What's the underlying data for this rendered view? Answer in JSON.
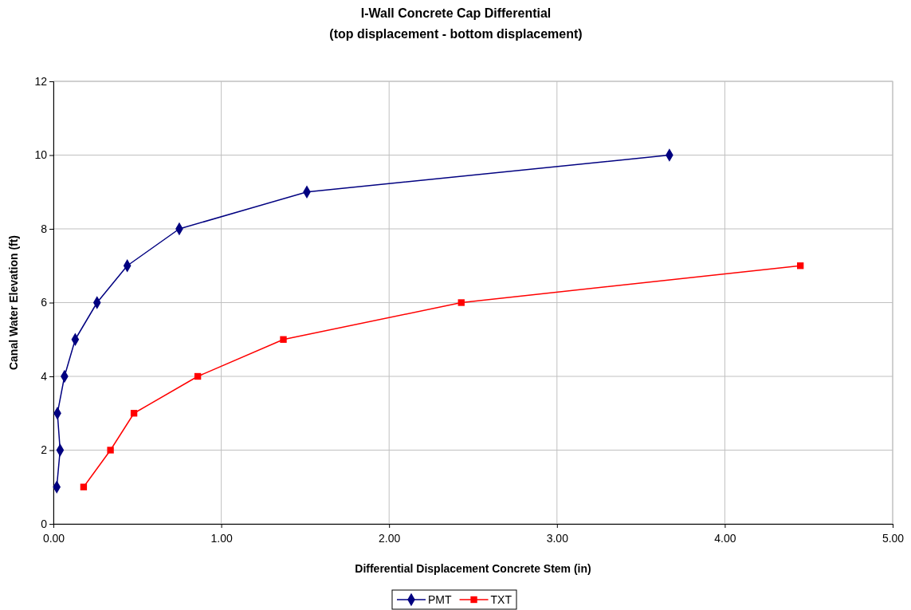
{
  "chart_data": {
    "type": "line",
    "title": "I-Wall Concrete Cap Differential",
    "subtitle": "(top displacement - bottom displacement)",
    "xlabel": "Differential Displacement Concrete Stem (in)",
    "ylabel": "Canal Water Elevation (ft)",
    "xlim": [
      0,
      5
    ],
    "xticks": [
      {
        "value": 0,
        "label": "0.00"
      },
      {
        "value": 1,
        "label": "1.00"
      },
      {
        "value": 2,
        "label": "2.00"
      },
      {
        "value": 3,
        "label": "3.00"
      },
      {
        "value": 4,
        "label": "4.00"
      },
      {
        "value": 5,
        "label": "5.00"
      }
    ],
    "ylim": [
      0,
      12
    ],
    "yticks": [
      0,
      2,
      4,
      6,
      8,
      10,
      12
    ],
    "grid": true,
    "legend": "bottom",
    "series": [
      {
        "name": "PMT",
        "color": "#000080",
        "marker": "diamond",
        "x": [
          0.02,
          0.04,
          0.024,
          0.066,
          0.13,
          0.26,
          0.44,
          0.75,
          1.51,
          3.67
        ],
        "values": [
          1,
          2,
          3,
          4,
          5,
          6,
          7,
          8,
          9,
          10
        ]
      },
      {
        "name": "TXT",
        "color": "#ff0000",
        "marker": "square",
        "x": [
          0.18,
          0.34,
          0.48,
          0.86,
          1.37,
          2.43,
          4.45
        ],
        "values": [
          1,
          2,
          3,
          4,
          5,
          6,
          7
        ]
      }
    ]
  }
}
